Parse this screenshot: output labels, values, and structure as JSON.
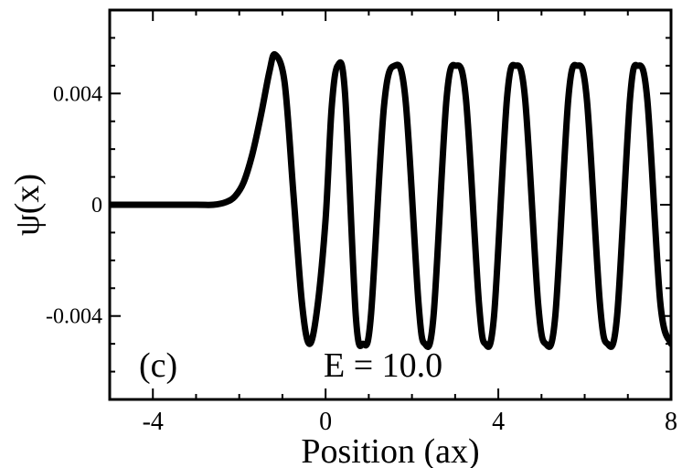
{
  "chart_data": {
    "type": "line",
    "title": "",
    "xlabel": "Position (ax)",
    "ylabel": "ψ(x)",
    "xlim": [
      -5,
      8
    ],
    "ylim": [
      -0.007,
      0.007
    ],
    "x_ticks": [
      -4,
      0,
      4,
      8
    ],
    "x_tick_labels": [
      "-4",
      "0",
      "4",
      "8"
    ],
    "y_ticks": [
      -0.004,
      0,
      0.004
    ],
    "y_tick_labels": [
      "-0.004",
      "0",
      "0.004"
    ],
    "panel_label": "(c)",
    "annotation": "E = 10.0",
    "grid": false,
    "line_color": "#000000",
    "series": [
      {
        "x": [
          -5,
          -4,
          -3,
          -2.6,
          -2.3,
          -2.1,
          -1.9,
          -1.7,
          -1.5,
          -1.3,
          -1.17,
          -0.95,
          -0.75,
          -0.55,
          -0.38,
          -0.2,
          0.0,
          0.14,
          0.28,
          0.45,
          0.7,
          0.87,
          1.05,
          1.35,
          1.6,
          1.85,
          2.15,
          2.3,
          2.5,
          2.8,
          3.02,
          3.25,
          3.55,
          3.7,
          3.9,
          4.2,
          4.4,
          4.62,
          4.92,
          5.1,
          5.32,
          5.62,
          5.83,
          6.05,
          6.35,
          6.53,
          6.75,
          7.05,
          7.23,
          7.45,
          7.75,
          8.0
        ],
        "y": [
          0,
          0,
          0,
          0.0,
          0.0001,
          0.0003,
          0.0008,
          0.0018,
          0.0032,
          0.0048,
          0.0054,
          0.0044,
          0.0005,
          -0.0035,
          -0.005,
          -0.0038,
          -0.0005,
          0.0035,
          0.005,
          0.004,
          -0.004,
          -0.005,
          -0.004,
          0.0035,
          0.005,
          0.0038,
          -0.0035,
          -0.005,
          -0.004,
          0.0038,
          0.005,
          0.0038,
          -0.0035,
          -0.005,
          -0.004,
          0.0038,
          0.005,
          0.0038,
          -0.0035,
          -0.005,
          -0.004,
          0.0038,
          0.005,
          0.0038,
          -0.0035,
          -0.005,
          -0.004,
          0.0038,
          0.005,
          0.0038,
          -0.0035,
          -0.005
        ]
      }
    ]
  }
}
